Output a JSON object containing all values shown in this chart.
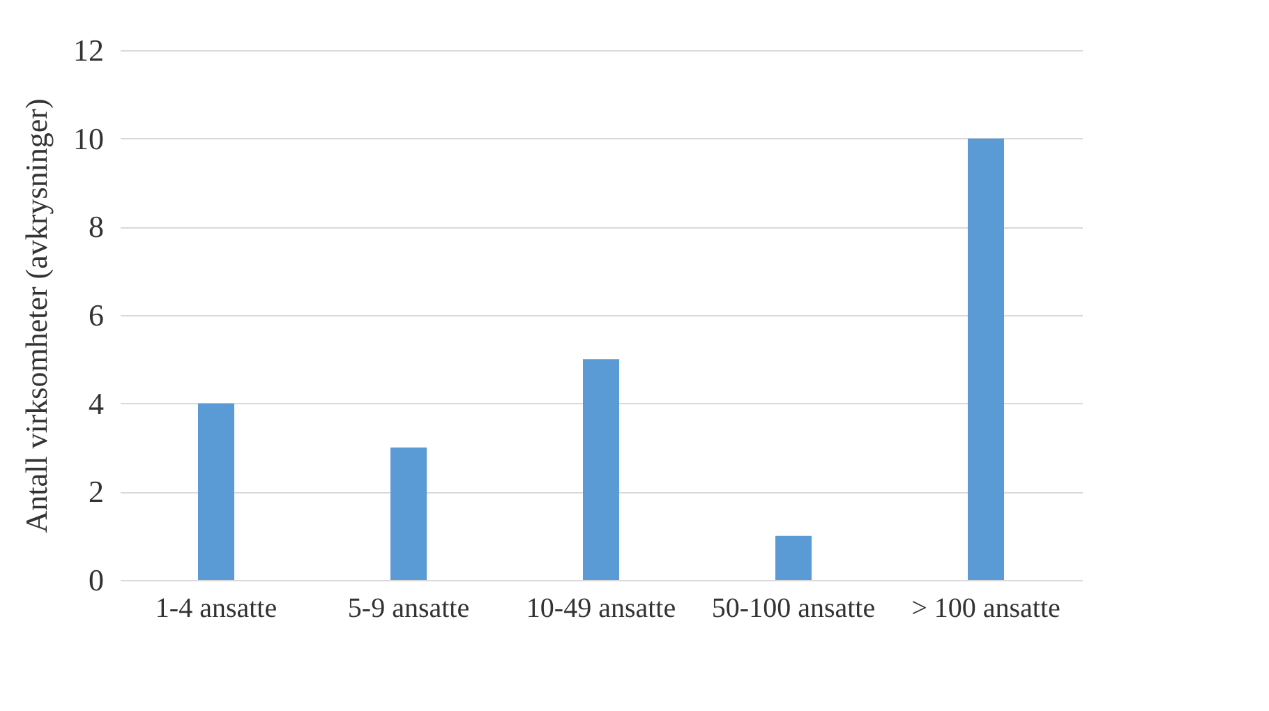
{
  "chart_data": {
    "type": "bar",
    "ylabel": "Antall virksomheter (avkrysninger)",
    "categories": [
      "1-4 ansatte",
      "5-9 ansatte",
      "10-49 ansatte",
      "50-100 ansatte",
      "> 100 ansatte"
    ],
    "values": [
      4,
      3,
      5,
      1,
      10
    ],
    "color": "#5b9bd5",
    "ylim": [
      0,
      12
    ],
    "yticks": [
      0,
      2,
      4,
      6,
      8,
      10,
      12
    ],
    "grid": "y"
  }
}
